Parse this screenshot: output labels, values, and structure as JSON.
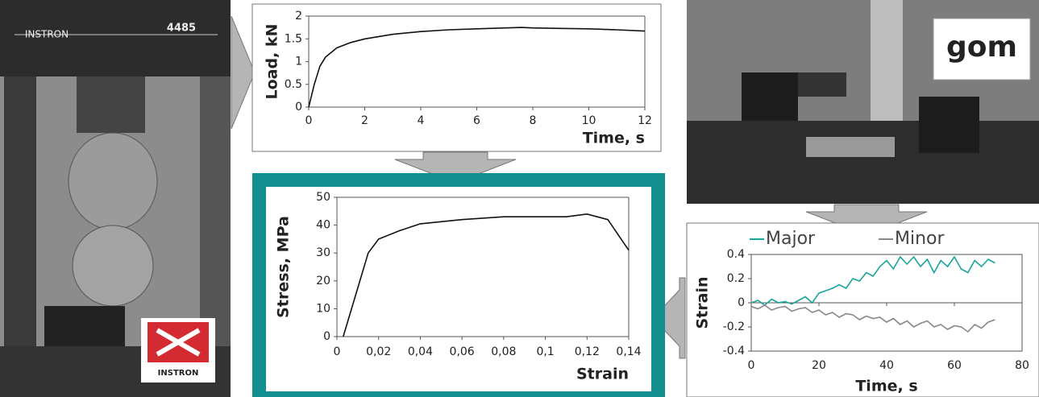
{
  "photo_labels": {
    "left_top_brand": "INSTRON",
    "left_top_model": "4485",
    "left_logo": "INSTRON",
    "right_logo": "gom"
  },
  "chart_data": [
    {
      "type": "line",
      "xlabel": "Time, s",
      "ylabel": "Load, kN",
      "color": "#111111",
      "x": [
        0,
        0.2,
        0.4,
        0.6,
        0.8,
        1,
        1.5,
        2,
        3,
        4,
        5,
        6,
        7,
        7.6,
        8,
        9,
        10,
        11,
        12
      ],
      "values": [
        0,
        0.5,
        0.9,
        1.1,
        1.2,
        1.3,
        1.42,
        1.5,
        1.6,
        1.66,
        1.7,
        1.72,
        1.74,
        1.75,
        1.74,
        1.73,
        1.72,
        1.7,
        1.67
      ],
      "xlim": [
        0,
        12
      ],
      "xticks": [
        0,
        2,
        4,
        6,
        8,
        10,
        12
      ],
      "ylim": [
        0,
        2
      ],
      "yticks": [
        0,
        0.5,
        1,
        1.5,
        2
      ]
    },
    {
      "type": "line",
      "xlabel": "Strain",
      "ylabel": "Stress, MPa",
      "color": "#111111",
      "x": [
        0.003,
        0.009,
        0.015,
        0.02,
        0.03,
        0.04,
        0.06,
        0.08,
        0.1,
        0.11,
        0.12,
        0.13,
        0.14
      ],
      "values": [
        0,
        15,
        30,
        35,
        38,
        40.5,
        42,
        43,
        43,
        43,
        44,
        42,
        31
      ],
      "xlim": [
        0,
        0.14
      ],
      "xticks": [
        0,
        {
          "value": 0.02,
          "label": "0,02"
        },
        {
          "value": 0.04,
          "label": "0,04"
        },
        {
          "value": 0.06,
          "label": "0,06"
        },
        {
          "value": 0.08,
          "label": "0,08"
        },
        {
          "value": 0.1,
          "label": "0,1"
        },
        {
          "value": 0.12,
          "label": "0,12"
        },
        {
          "value": 0.14,
          "label": "0,14"
        }
      ],
      "ylim": [
        0,
        50
      ],
      "yticks": [
        0,
        10,
        20,
        30,
        40,
        50
      ]
    },
    {
      "type": "line",
      "xlabel": "Time, s",
      "ylabel": "Strain",
      "legend": "top",
      "x": [
        0,
        2,
        4,
        6,
        8,
        10,
        12,
        14,
        16,
        18,
        20,
        22,
        24,
        26,
        28,
        30,
        32,
        34,
        36,
        38,
        40,
        42,
        44,
        46,
        48,
        50,
        52,
        54,
        56,
        58,
        60,
        62,
        64,
        66,
        68,
        70,
        72
      ],
      "series": [
        {
          "name": "Major",
          "color": "#1aa59a",
          "values": [
            0,
            0.02,
            -0.02,
            0.03,
            0,
            0.01,
            -0.01,
            0.02,
            0.05,
            0,
            0.08,
            0.1,
            0.12,
            0.15,
            0.12,
            0.2,
            0.18,
            0.25,
            0.22,
            0.3,
            0.35,
            0.28,
            0.38,
            0.32,
            0.38,
            0.3,
            0.36,
            0.25,
            0.35,
            0.3,
            0.38,
            0.28,
            0.25,
            0.35,
            0.3,
            0.36,
            0.33
          ]
        },
        {
          "name": "Minor",
          "color": "#888888",
          "values": [
            -0.03,
            -0.05,
            -0.02,
            -0.06,
            -0.04,
            -0.03,
            -0.07,
            -0.05,
            -0.04,
            -0.08,
            -0.06,
            -0.1,
            -0.08,
            -0.12,
            -0.09,
            -0.1,
            -0.14,
            -0.11,
            -0.13,
            -0.12,
            -0.16,
            -0.13,
            -0.18,
            -0.15,
            -0.2,
            -0.17,
            -0.15,
            -0.2,
            -0.18,
            -0.22,
            -0.19,
            -0.2,
            -0.24,
            -0.18,
            -0.21,
            -0.16,
            -0.14
          ]
        }
      ],
      "xlim": [
        0,
        80
      ],
      "xticks": [
        0,
        20,
        40,
        60,
        80
      ],
      "ylim": [
        -0.4,
        0.4
      ],
      "yticks": [
        -0.4,
        -0.2,
        0,
        0.2,
        0.4
      ]
    }
  ]
}
